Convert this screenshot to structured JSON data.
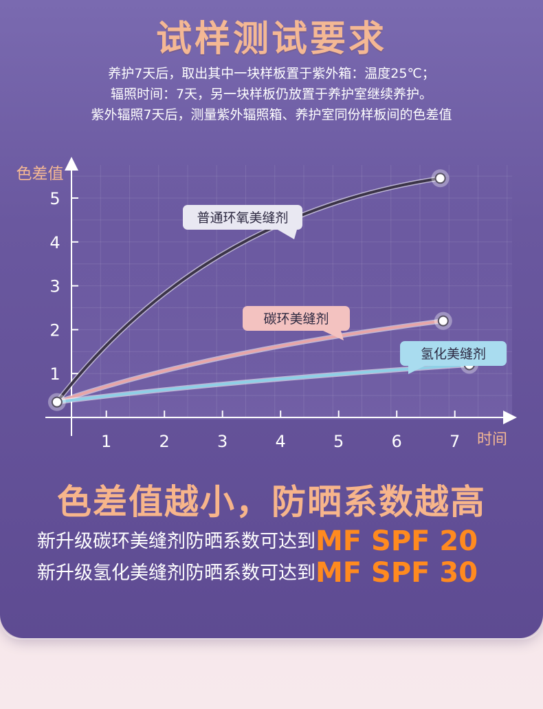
{
  "header": {
    "title": "试样测试要求",
    "desc_lines": [
      "养护7天后，取出其中一块样板置于紫外箱：温度25℃；",
      "辐照时间：7天，另一块样板仍放置于养护室继续养护。",
      "紫外辐照7天后，测量紫外辐照箱、养护室同份样板间的色差值"
    ]
  },
  "chart_data": {
    "type": "line",
    "ylabel": "色差值",
    "xlabel": "时间",
    "x_ticks": [
      "1",
      "2",
      "3",
      "4",
      "5",
      "6",
      "7"
    ],
    "y_ticks": [
      "1",
      "2",
      "3",
      "4",
      "5"
    ],
    "xlim": [
      0.4,
      7.8
    ],
    "ylim": [
      0,
      5.8
    ],
    "grid": true,
    "series": [
      {
        "name": "普通环氧美缝剂",
        "color": "#3b3448",
        "start": [
          0.15,
          0.35
        ],
        "end": [
          6.75,
          5.45
        ]
      },
      {
        "name": "碳环美缝剂",
        "color": "#e8a6a8",
        "start": [
          0.15,
          0.35
        ],
        "end": [
          6.8,
          2.2
        ]
      },
      {
        "name": "氢化美缝剂",
        "color": "#8fd0e6",
        "start": [
          0.15,
          0.35
        ],
        "end": [
          7.25,
          1.2
        ]
      }
    ]
  },
  "conclusion": {
    "headline": "色差值越小，防晒系数越高",
    "lines": [
      {
        "text": "新升级碳环美缝剂防晒系数可达到",
        "highlight": "MF SPF 20"
      },
      {
        "text": "新升级氢化美缝剂防晒系数可达到",
        "highlight": "MF SPF 30"
      }
    ]
  }
}
